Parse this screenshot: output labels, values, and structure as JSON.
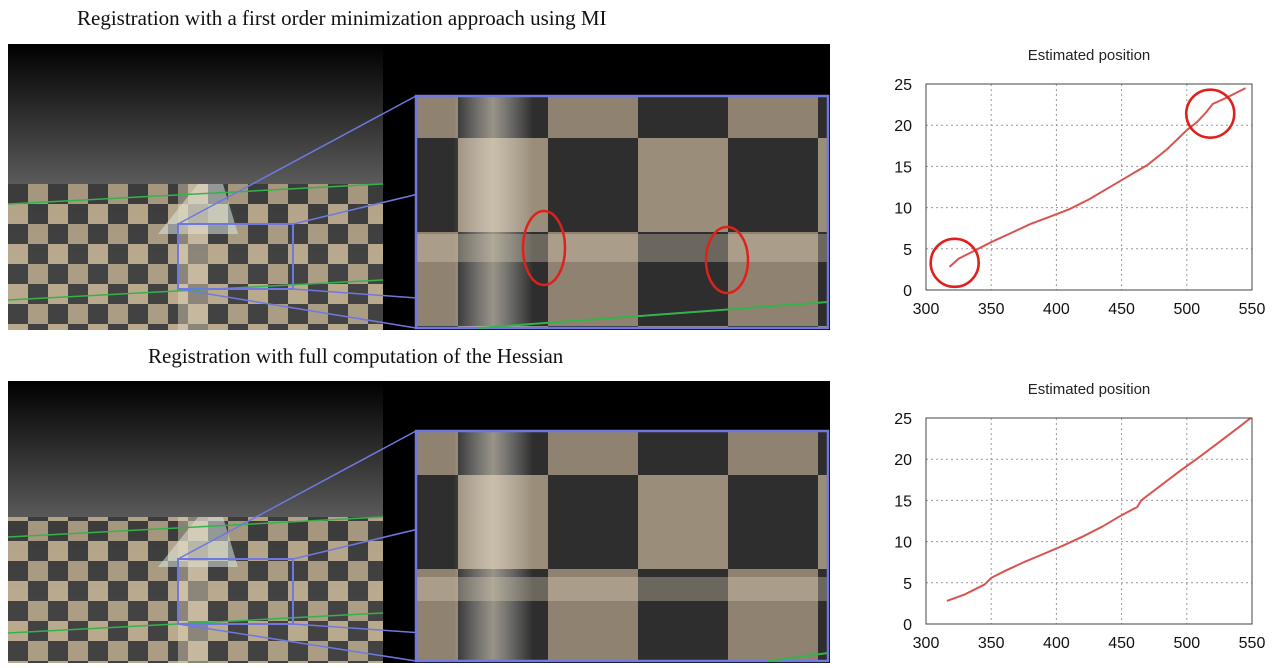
{
  "rows": [
    {
      "title": "Registration with a first order minimization approach using MI"
    },
    {
      "title": "Registration with full computation of the Hessian"
    }
  ],
  "colors": {
    "series": "#d9534f",
    "highlight": "#e0201b",
    "zoom_frame": "#6f78e0",
    "grid_line": "#35b34a"
  },
  "chart_data": [
    {
      "type": "line",
      "title": "Estimated position",
      "xlim": [
        300,
        550
      ],
      "ylim": [
        0,
        25
      ],
      "x_ticks": [
        300,
        350,
        400,
        450,
        500,
        550
      ],
      "y_ticks": [
        0,
        5,
        10,
        15,
        20,
        25
      ],
      "grid": true,
      "series": [
        {
          "x": [
            318,
            325,
            335,
            350,
            365,
            380,
            395,
            410,
            425,
            440,
            455,
            470,
            485,
            500,
            508,
            515,
            520,
            530,
            545
          ],
          "y": [
            2.8,
            3.8,
            4.6,
            5.8,
            6.9,
            8.0,
            8.9,
            9.8,
            11.0,
            12.4,
            13.8,
            15.2,
            17.1,
            19.4,
            20.4,
            21.6,
            22.6,
            23.3,
            24.5
          ]
        }
      ],
      "highlights": [
        {
          "x": 322,
          "y": 3.3
        },
        {
          "x": 518,
          "y": 21.4
        }
      ]
    },
    {
      "type": "line",
      "title": "Estimated position",
      "xlim": [
        300,
        550
      ],
      "ylim": [
        0,
        25
      ],
      "x_ticks": [
        300,
        350,
        400,
        450,
        500,
        550
      ],
      "y_ticks": [
        0,
        5,
        10,
        15,
        20,
        25
      ],
      "grid": true,
      "series": [
        {
          "x": [
            316,
            330,
            345,
            350,
            360,
            375,
            390,
            405,
            420,
            435,
            450,
            462,
            465,
            480,
            495,
            510,
            525,
            540,
            549
          ],
          "y": [
            2.8,
            3.6,
            4.8,
            5.6,
            6.4,
            7.5,
            8.5,
            9.5,
            10.6,
            11.8,
            13.2,
            14.2,
            15.0,
            16.8,
            18.6,
            20.3,
            22.1,
            23.9,
            25.0
          ]
        }
      ],
      "highlights": []
    }
  ]
}
